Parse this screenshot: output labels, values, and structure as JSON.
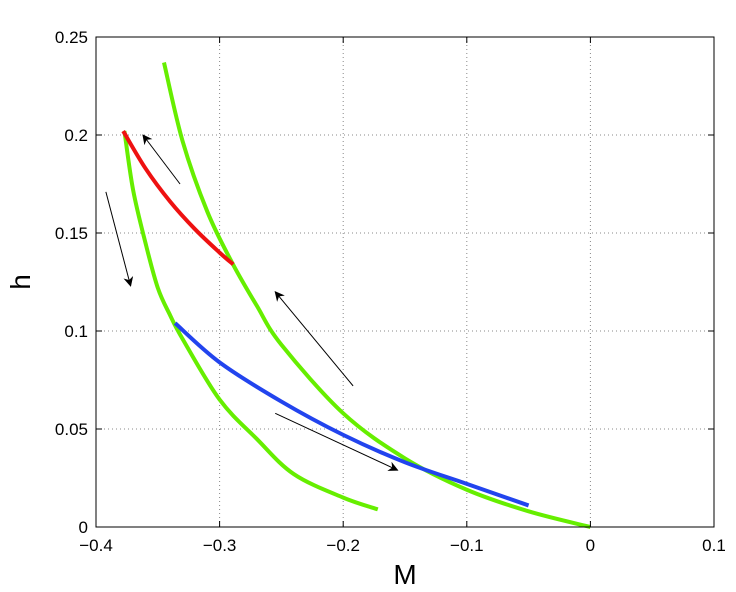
{
  "chart_data": {
    "type": "line",
    "title": "",
    "xlabel": "M",
    "ylabel": "h",
    "xlim": [
      -0.4,
      0.1
    ],
    "ylim": [
      0,
      0.25
    ],
    "grid": true,
    "xticks": [
      -0.4,
      -0.3,
      -0.2,
      -0.1,
      0,
      0.1
    ],
    "yticks": [
      0,
      0.05,
      0.1,
      0.15,
      0.2,
      0.25
    ],
    "xtick_labels": [
      "−0.4",
      "−0.3",
      "−0.2",
      "−0.1",
      "0",
      "0.1"
    ],
    "ytick_labels": [
      "0",
      "0.05",
      "0.1",
      "0.15",
      "0.2",
      "0.25"
    ],
    "series": [
      {
        "color": "#66ee00",
        "points": [
          [
            -0.345,
            0.237
          ],
          [
            -0.33,
            0.197
          ],
          [
            -0.31,
            0.161
          ],
          [
            -0.29,
            0.135
          ],
          [
            -0.27,
            0.113
          ],
          [
            -0.25,
            0.093
          ],
          [
            -0.2,
            0.058
          ],
          [
            -0.15,
            0.035
          ],
          [
            -0.1,
            0.019
          ],
          [
            -0.05,
            0.008
          ],
          [
            0.0,
            0.0
          ]
        ]
      },
      {
        "color": "#66ee00",
        "points": [
          [
            -0.377,
            0.202
          ],
          [
            -0.37,
            0.172
          ],
          [
            -0.36,
            0.145
          ],
          [
            -0.35,
            0.122
          ],
          [
            -0.34,
            0.108
          ],
          [
            -0.33,
            0.096
          ],
          [
            -0.3,
            0.065
          ],
          [
            -0.27,
            0.045
          ],
          [
            -0.24,
            0.027
          ],
          [
            -0.2,
            0.015
          ],
          [
            -0.172,
            0.009
          ]
        ]
      },
      {
        "color": "#ee1111",
        "points": [
          [
            -0.378,
            0.202
          ],
          [
            -0.36,
            0.183
          ],
          [
            -0.34,
            0.166
          ],
          [
            -0.32,
            0.152
          ],
          [
            -0.3,
            0.14
          ],
          [
            -0.289,
            0.134
          ]
        ]
      },
      {
        "color": "#2244ee",
        "points": [
          [
            -0.336,
            0.104
          ],
          [
            -0.3,
            0.084
          ],
          [
            -0.25,
            0.064
          ],
          [
            -0.2,
            0.047
          ],
          [
            -0.15,
            0.033
          ],
          [
            -0.1,
            0.022
          ],
          [
            -0.05,
            0.011
          ]
        ]
      }
    ],
    "arrows": [
      {
        "from": [
          -0.332,
          0.175
        ],
        "to": [
          -0.362,
          0.2
        ]
      },
      {
        "from": [
          -0.392,
          0.171
        ],
        "to": [
          -0.372,
          0.123
        ]
      },
      {
        "from": [
          -0.192,
          0.072
        ],
        "to": [
          -0.255,
          0.12
        ]
      },
      {
        "from": [
          -0.255,
          0.058
        ],
        "to": [
          -0.156,
          0.029
        ]
      }
    ]
  }
}
